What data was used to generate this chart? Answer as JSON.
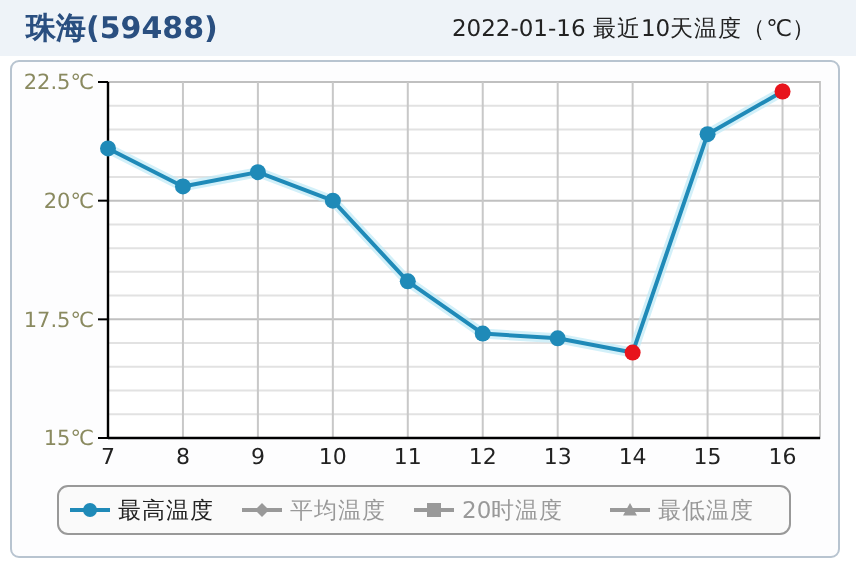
{
  "chart_data": {
    "type": "line",
    "title": "珠海(59488)",
    "subtitle": "2022-01-16 最近10天温度（℃）",
    "x": [
      7,
      8,
      9,
      10,
      11,
      12,
      13,
      14,
      15,
      16
    ],
    "xlim": [
      7,
      16.5
    ],
    "xticks": [
      7,
      8,
      9,
      10,
      11,
      12,
      13,
      14,
      15,
      16
    ],
    "ylim": [
      15,
      22.5
    ],
    "yticks": [
      {
        "value": 15,
        "label": "15℃"
      },
      {
        "value": 15.5,
        "label": null
      },
      {
        "value": 16,
        "label": null
      },
      {
        "value": 16.5,
        "label": null
      },
      {
        "value": 17,
        "label": null
      },
      {
        "value": 17.5,
        "label": "17.5℃"
      },
      {
        "value": 18,
        "label": null
      },
      {
        "value": 18.5,
        "label": null
      },
      {
        "value": 19,
        "label": null
      },
      {
        "value": 19.5,
        "label": null
      },
      {
        "value": 20,
        "label": "20℃"
      },
      {
        "value": 20.5,
        "label": null
      },
      {
        "value": 21,
        "label": null
      },
      {
        "value": 21.5,
        "label": null
      },
      {
        "value": 22,
        "label": null
      },
      {
        "value": 22.5,
        "label": "22.5℃"
      }
    ],
    "grid": true,
    "legend": "bottom",
    "marker": "circle",
    "line_style": "solid",
    "series": [
      {
        "name": "最高温度",
        "color": "#1f8ab8",
        "values": [
          21.1,
          20.3,
          20.6,
          20.0,
          18.3,
          17.2,
          17.1,
          16.8,
          21.4,
          22.3
        ],
        "colors": [
          "#1f8ab8",
          "#1f8ab8",
          "#1f8ab8",
          "#1f8ab8",
          "#1f8ab8",
          "#1f8ab8",
          "#1f8ab8",
          "#e8141c",
          "#1f8ab8",
          "#e8141c"
        ]
      },
      {
        "name": "平均温度",
        "color": "#999999",
        "marker": "diamond",
        "values": [
          null,
          null,
          null,
          null,
          null,
          null,
          null,
          null,
          null,
          null
        ]
      },
      {
        "name": "20时温度",
        "color": "#999999",
        "marker": "square",
        "values": [
          null,
          null,
          null,
          null,
          null,
          null,
          null,
          null,
          null,
          null
        ]
      },
      {
        "name": "最低温度",
        "color": "#999999",
        "marker": "triangle",
        "values": [
          null,
          null,
          null,
          null,
          null,
          null,
          null,
          null,
          null,
          null
        ]
      }
    ]
  }
}
